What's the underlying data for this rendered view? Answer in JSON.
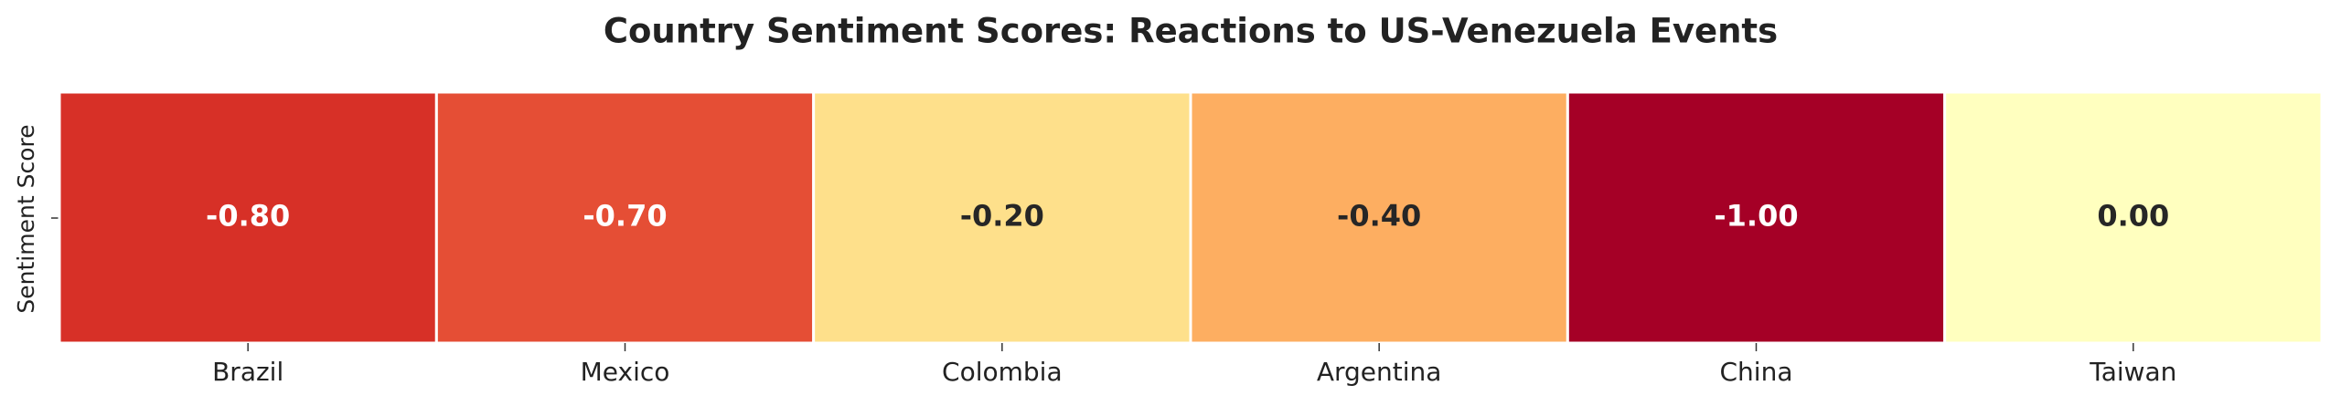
{
  "chart_data": {
    "type": "heatmap",
    "title": "Country Sentiment Scores: Reactions to US-Venezuela Events",
    "ylabel": "Sentiment Score",
    "categories": [
      "Brazil",
      "Mexico",
      "Colombia",
      "Argentina",
      "China",
      "Taiwan"
    ],
    "values": [
      -0.8,
      -0.7,
      -0.2,
      -0.4,
      -1.0,
      0.0
    ],
    "value_labels": [
      "-0.80",
      "-0.70",
      "-0.20",
      "-0.40",
      "-1.00",
      "0.00"
    ],
    "colors": [
      "#d73027",
      "#e54e35",
      "#fee08b",
      "#fdae61",
      "#a50026",
      "#ffffbf"
    ]
  }
}
